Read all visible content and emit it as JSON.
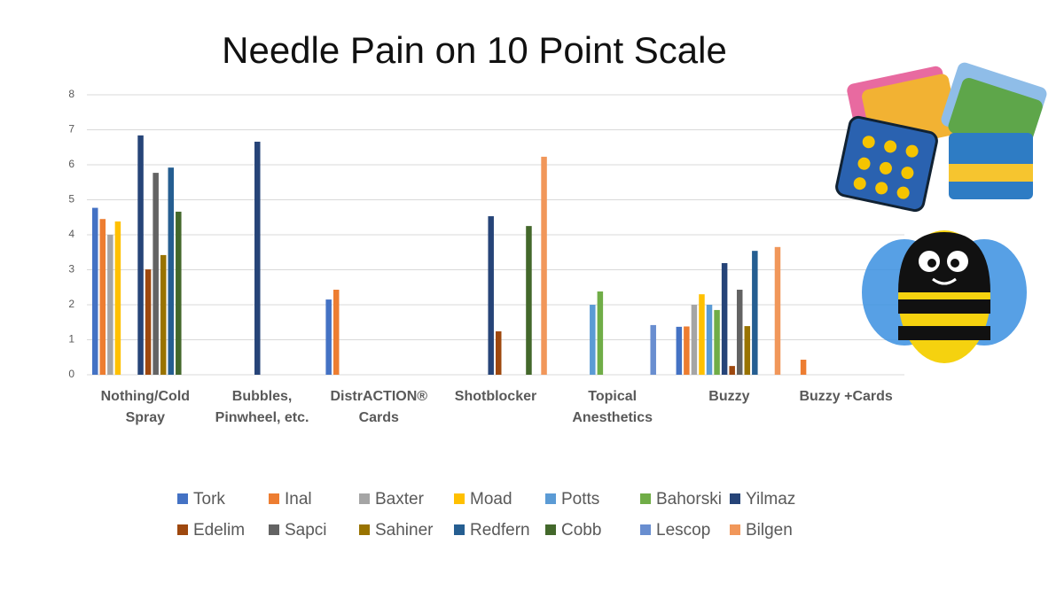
{
  "chart_data": {
    "type": "bar",
    "title": "Needle Pain on 10 Point Scale",
    "categories": [
      "Nothing/Cold Spray",
      "Bubbles, Pinwheel, etc.",
      "DistrACTION® Cards",
      "Shotblocker",
      "Topical Anesthetics",
      "Buzzy",
      "Buzzy +Cards"
    ],
    "series": [
      {
        "name": "Tork",
        "color": "#4472c4",
        "values": [
          4.77,
          null,
          2.15,
          null,
          null,
          1.37,
          null
        ]
      },
      {
        "name": "Inal",
        "color": "#ed7d31",
        "values": [
          4.45,
          null,
          2.43,
          null,
          null,
          1.38,
          0.43
        ]
      },
      {
        "name": "Baxter",
        "color": "#a5a5a5",
        "values": [
          4.0,
          null,
          null,
          null,
          null,
          2.0,
          null
        ]
      },
      {
        "name": "Moad",
        "color": "#ffc000",
        "values": [
          4.38,
          null,
          null,
          null,
          null,
          2.3,
          null
        ]
      },
      {
        "name": "Potts",
        "color": "#5b9bd5",
        "values": [
          null,
          null,
          null,
          null,
          2.0,
          2.0,
          null
        ]
      },
      {
        "name": "Bahorski",
        "color": "#70ad47",
        "values": [
          null,
          null,
          null,
          null,
          2.38,
          1.85,
          null
        ]
      },
      {
        "name": "Yilmaz",
        "color": "#264478",
        "values": [
          6.84,
          6.66,
          null,
          4.53,
          null,
          3.19,
          null
        ]
      },
      {
        "name": "Edelim",
        "color": "#9e480e",
        "values": [
          3.01,
          null,
          null,
          1.24,
          null,
          0.25,
          null
        ]
      },
      {
        "name": "Sapci",
        "color": "#636363",
        "values": [
          5.77,
          null,
          null,
          null,
          null,
          2.43,
          null
        ]
      },
      {
        "name": "Sahiner",
        "color": "#997300",
        "values": [
          3.42,
          null,
          null,
          null,
          null,
          1.39,
          null
        ]
      },
      {
        "name": "Redfern",
        "color": "#255e91",
        "values": [
          5.92,
          null,
          null,
          null,
          null,
          3.54,
          null
        ]
      },
      {
        "name": "Cobb",
        "color": "#43682b",
        "values": [
          4.66,
          null,
          null,
          4.25,
          null,
          null,
          null
        ]
      },
      {
        "name": "Lescop",
        "color": "#698ed0",
        "values": [
          null,
          null,
          null,
          null,
          1.42,
          null,
          null
        ]
      },
      {
        "name": "Bilgen",
        "color": "#f1975a",
        "values": [
          null,
          null,
          null,
          6.23,
          null,
          3.65,
          null
        ]
      }
    ],
    "ylim": [
      0,
      8
    ],
    "yticks": [
      0,
      1,
      2,
      3,
      4,
      5,
      6,
      7,
      8
    ],
    "grid": true
  }
}
